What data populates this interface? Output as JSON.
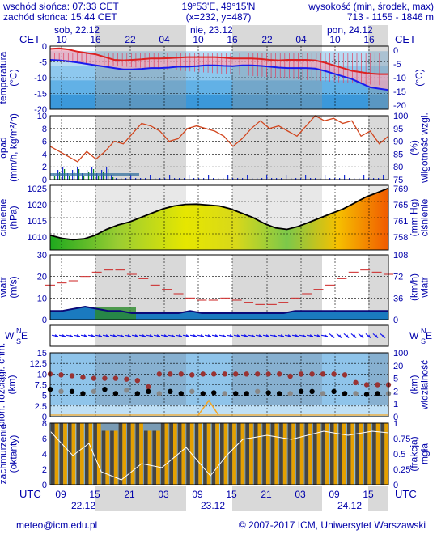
{
  "header": {
    "sunrise": "wschód słońca: 07:33 CET",
    "sunset": "zachód słońca: 15:44 CET",
    "coords": "19°53'E, 49°15'N",
    "grid": "(x=232, y=487)",
    "elev_label": "wysokość (min, środek, max)",
    "elev_values": "713 - 1155 - 1846 m"
  },
  "days_top": [
    "sob, 22.12",
    "nie, 23.12",
    "pon, 24.12"
  ],
  "hours_top": [
    "10",
    "16",
    "22",
    "04",
    "10",
    "16",
    "22",
    "04",
    "10",
    "16"
  ],
  "tz_top": "CET",
  "hours_bottom": [
    "09",
    "15",
    "21",
    "03",
    "09",
    "15",
    "21",
    "03",
    "09",
    "15"
  ],
  "days_bottom": [
    "22.12",
    "23.12",
    "24.12"
  ],
  "tz_bottom": "UTC",
  "footer": {
    "email": "meteo@icm.edu.pl",
    "copyright": "© 2007-2017 ICM, Uniwersytet Warszawski"
  },
  "colors": {
    "text": "#0000aa",
    "temp_line": "#dd2222",
    "dew_line": "#1a1aee",
    "humidity": "#d2461e",
    "wind_dark": "#0a0a78",
    "wind_gust": "#cc2222",
    "visibility_dots": "#993333",
    "fog": "#f5a623"
  },
  "panels": [
    {
      "label": "temperatura\n(°C)",
      "right_label": "(°F)"
    },
    {
      "label": "opad\n(mm/h, kg/m²/h)",
      "right_label": "(%)\nwilgotność wzgl."
    },
    {
      "label": "ciśnienie\n(hPa)",
      "right_label": "(mm Hg)\nciśnienie"
    },
    {
      "label": "wiatr\n(m/s)",
      "right_label": "(km/h)\nwiatr"
    },
    {
      "label": "W E",
      "right_label": "W E"
    },
    {
      "label": "pion. rozciągł. chm.\n(km)",
      "right_label": "(km)\nwidzialność"
    },
    {
      "label": "zachmurzenie\n(oktanty)",
      "right_label": "(frakcja)\nmgła"
    }
  ],
  "chart_data": [
    {
      "type": "line",
      "name": "temperature",
      "yticks": [
        0,
        -5,
        -10,
        -15,
        -20
      ],
      "ylim": [
        -21,
        2
      ],
      "series": [
        {
          "values": [
            1,
            1.2,
            0.8,
            0,
            -0.5,
            -1,
            -2,
            -3,
            -3.2,
            -3,
            -2.8,
            -2.5,
            -2.5,
            -2.4,
            -2.2,
            -2,
            -2,
            -2,
            -2,
            -2.2,
            -2.5,
            -2.5,
            -2.5,
            -2.7,
            -3,
            -3.2,
            -3,
            -3,
            -3,
            -3.2,
            -4,
            -5,
            -6,
            -7,
            -7.5,
            -8,
            -8.2,
            -8.2
          ]
        },
        {
          "values": [
            -3,
            -3.2,
            -3.5,
            -4,
            -4.5,
            -5,
            -5.5,
            -6,
            -6.5,
            -6.5,
            -6.3,
            -6,
            -6,
            -5.8,
            -5.5,
            -5.5,
            -5.3,
            -5,
            -5,
            -5.2,
            -5.3,
            -5,
            -5,
            -5.2,
            -5.5,
            -5.8,
            -6,
            -6,
            -6,
            -6.2,
            -7,
            -8,
            -9,
            -10,
            -11.5,
            -13,
            -13.5,
            -14
          ]
        }
      ]
    },
    {
      "type": "line",
      "name": "humidity",
      "yticks": [
        10,
        8,
        6,
        4,
        2,
        0
      ],
      "y2ticks": [
        100,
        95,
        90,
        85,
        80,
        75
      ],
      "series": [
        {
          "values": [
            88,
            86,
            84,
            82,
            86,
            83,
            86,
            90,
            89,
            93,
            97,
            96,
            94,
            90,
            91,
            95,
            96,
            95,
            94,
            92,
            88,
            91,
            95,
            98,
            95,
            96,
            94,
            92,
            96,
            100,
            98,
            99,
            97,
            98,
            92,
            94,
            89,
            92
          ]
        }
      ]
    },
    {
      "type": "area",
      "name": "pressure",
      "yticks": [
        1025,
        1020,
        1015,
        1010
      ],
      "y2ticks": [
        769,
        765,
        761,
        758
      ],
      "ylim": [
        1005,
        1027
      ],
      "values": [
        1010,
        1009,
        1008.5,
        1008.8,
        1010,
        1012,
        1013.5,
        1014.5,
        1016,
        1017.5,
        1019,
        1020,
        1020.5,
        1020.6,
        1020.3,
        1020,
        1019,
        1017.5,
        1016,
        1014,
        1012.5,
        1012,
        1013,
        1014.5,
        1016,
        1017.5,
        1019,
        1021,
        1023,
        1024.5,
        1026
      ]
    },
    {
      "type": "line",
      "name": "wind",
      "yticks": [
        30,
        20,
        10,
        0
      ],
      "y2ticks": [
        108,
        72,
        36,
        0
      ],
      "ylim": [
        0,
        30
      ],
      "series": [
        {
          "values": [
            16,
            17,
            18,
            20,
            22,
            23,
            23,
            21,
            19,
            16,
            14,
            12,
            10,
            9,
            9,
            10,
            9,
            8,
            7,
            7,
            8,
            10,
            12,
            14,
            16,
            19,
            22,
            23,
            22,
            21
          ]
        },
        {
          "values": [
            4,
            4,
            5,
            6,
            5,
            4,
            4,
            3,
            3,
            3,
            3,
            3,
            4,
            3,
            3,
            3,
            3,
            3,
            3,
            3,
            3,
            4,
            4,
            4,
            4,
            4,
            4,
            4,
            4,
            4
          ]
        }
      ]
    },
    {
      "type": "line",
      "name": "cloud_top_and_visibility",
      "yticks": [
        15.0,
        12.5,
        10.0,
        7.5,
        5.0,
        2.5,
        0.0
      ],
      "y2ticks": [
        100,
        20,
        5,
        2,
        1,
        0
      ],
      "series": [
        {
          "values": [
            10,
            9.8,
            9.6,
            9.2,
            9,
            9,
            9,
            8.8,
            8.5,
            7,
            10,
            10,
            10,
            9.8,
            10,
            10,
            10,
            10,
            10,
            10,
            10,
            10,
            9.5,
            10,
            10,
            10,
            10,
            9.8,
            8,
            7.5,
            7.5,
            7.5
          ]
        },
        {
          "values": [
            3,
            2.5,
            2.5,
            2,
            2.5,
            3,
            2,
            2.8,
            2,
            2.5,
            2,
            2.5,
            2,
            2.5,
            2,
            2.2,
            2,
            2,
            2,
            2.5,
            2.2,
            2,
            2,
            2.5,
            2.5,
            2,
            2.5,
            2,
            2,
            1.8,
            2,
            2
          ]
        }
      ]
    },
    {
      "type": "bar",
      "name": "cloudiness",
      "yticks": [
        8,
        6,
        4,
        2,
        0
      ],
      "y2ticks": [
        1.0,
        0.75,
        0.5,
        0.25,
        0
      ],
      "values": [
        8,
        8,
        8,
        8,
        8,
        8,
        7,
        7,
        8,
        8,
        8,
        7,
        7,
        8,
        8,
        8,
        8,
        8,
        8,
        8,
        8,
        8,
        8,
        8,
        8,
        8,
        8,
        8,
        8,
        8,
        8,
        8,
        8,
        8,
        8,
        8,
        8,
        8,
        8,
        8
      ]
    }
  ]
}
